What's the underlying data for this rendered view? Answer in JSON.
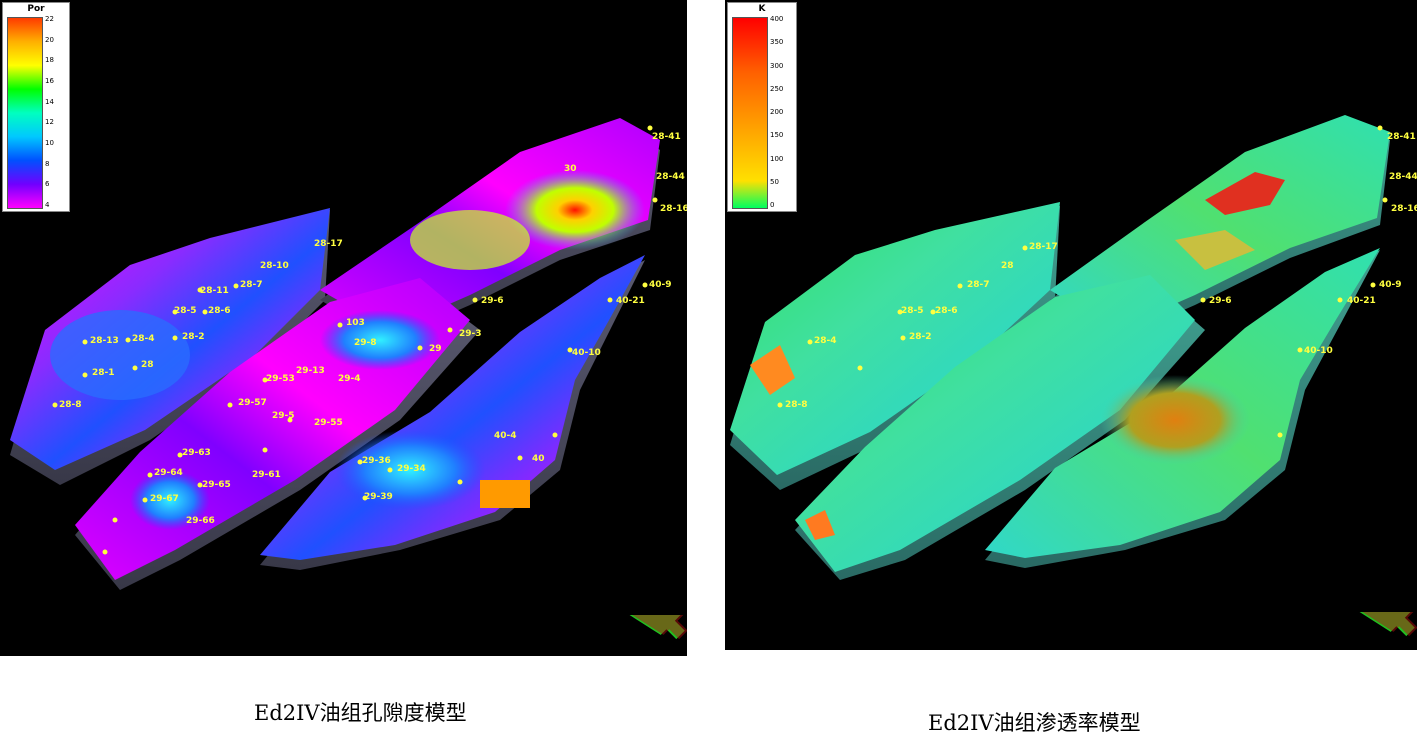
{
  "panels": [
    {
      "id": "por",
      "legend": {
        "title": "Por",
        "ticks": [
          "22",
          "20",
          "18",
          "16",
          "14",
          "12",
          "10",
          "8",
          "6",
          "4"
        ],
        "colors": [
          "#ff3a00",
          "#ffb000",
          "#ffff00",
          "#00ff00",
          "#00ffc0",
          "#00c8ff",
          "#0050ff",
          "#7000ff",
          "#ff00ff"
        ]
      },
      "caption": "Ed2IV油组孔隙度模型",
      "wells": [
        "28-11",
        "28-10",
        "28-7",
        "28-5",
        "28-6",
        "28-13",
        "28-4",
        "28-2",
        "28",
        "28-1",
        "28-8",
        "103",
        "29-8",
        "29-13",
        "29-53",
        "29-57",
        "29-5",
        "29-4",
        "29-55",
        "29",
        "29-63",
        "29-64",
        "29-67",
        "29-65",
        "29-66",
        "29-61",
        "29-36",
        "29-34",
        "29-39",
        "40-4",
        "40",
        "40-10",
        "40-21",
        "40-9",
        "29-6",
        "29-3",
        "28-41",
        "28-44",
        "28-16",
        "28-17",
        "30"
      ]
    },
    {
      "id": "k",
      "legend": {
        "title": "K",
        "ticks": [
          "400",
          "350",
          "300",
          "250",
          "200",
          "150",
          "100",
          "50",
          "0"
        ],
        "colors": [
          "#ff0000",
          "#ff3000",
          "#ff6000",
          "#ff8000",
          "#ffa000",
          "#ffc000",
          "#ffe000",
          "#00ff60"
        ]
      },
      "caption": "Ed2IV油组渗透率模型",
      "wells": [
        "28",
        "28-7",
        "28-5",
        "28-6",
        "28-4",
        "28-2",
        "28-8",
        "40-10",
        "40-21",
        "40-9",
        "29-6",
        "28-41",
        "28-44",
        "28-16",
        "28-17"
      ]
    }
  ]
}
